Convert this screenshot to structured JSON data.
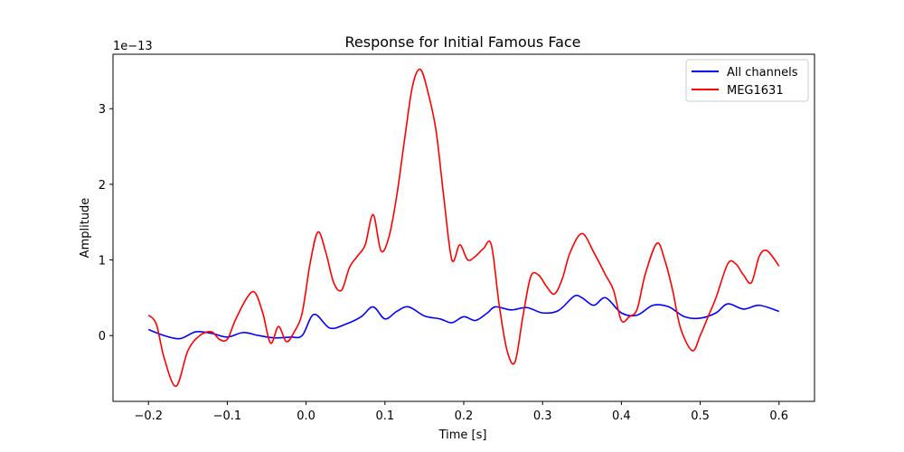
{
  "chart_data": {
    "type": "line",
    "title": "Response for Initial Famous Face",
    "xlabel": "Time [s]",
    "ylabel": "Amplitude",
    "offset_label": "1e−13",
    "xlim": [
      -0.245,
      0.645
    ],
    "ylim": [
      -0.87,
      3.72
    ],
    "x_ticks": [
      -0.2,
      -0.1,
      0.0,
      0.1,
      0.2,
      0.3,
      0.4,
      0.5,
      0.6
    ],
    "x_tick_labels": [
      "−0.2",
      "−0.1",
      "0.0",
      "0.1",
      "0.2",
      "0.3",
      "0.4",
      "0.5",
      "0.6"
    ],
    "y_ticks": [
      0,
      1,
      2,
      3
    ],
    "y_tick_labels": [
      "0",
      "1",
      "2",
      "3"
    ],
    "grid": false,
    "legend_position": "top-right",
    "series": [
      {
        "name": "All channels",
        "color": "#0000ff",
        "x": [
          -0.2,
          -0.18,
          -0.16,
          -0.14,
          -0.12,
          -0.1,
          -0.08,
          -0.06,
          -0.04,
          -0.02,
          -0.005,
          0.01,
          0.03,
          0.05,
          0.07,
          0.085,
          0.1,
          0.115,
          0.13,
          0.15,
          0.17,
          0.185,
          0.2,
          0.215,
          0.23,
          0.24,
          0.26,
          0.28,
          0.3,
          0.32,
          0.34,
          0.35,
          0.365,
          0.38,
          0.4,
          0.42,
          0.44,
          0.46,
          0.48,
          0.5,
          0.52,
          0.535,
          0.555,
          0.575,
          0.6
        ],
        "y": [
          0.08,
          0.0,
          -0.04,
          0.05,
          0.03,
          -0.02,
          0.04,
          0.0,
          -0.03,
          -0.02,
          0.0,
          0.28,
          0.1,
          0.15,
          0.25,
          0.38,
          0.22,
          0.32,
          0.38,
          0.26,
          0.22,
          0.17,
          0.25,
          0.2,
          0.3,
          0.38,
          0.34,
          0.37,
          0.3,
          0.33,
          0.52,
          0.5,
          0.4,
          0.5,
          0.3,
          0.27,
          0.4,
          0.38,
          0.25,
          0.23,
          0.3,
          0.42,
          0.35,
          0.4,
          0.32
        ]
      },
      {
        "name": "MEG1631",
        "color": "#ff0000",
        "x": [
          -0.2,
          -0.19,
          -0.18,
          -0.165,
          -0.15,
          -0.135,
          -0.12,
          -0.11,
          -0.1,
          -0.09,
          -0.075,
          -0.065,
          -0.055,
          -0.045,
          -0.035,
          -0.025,
          -0.015,
          -0.005,
          0.005,
          0.015,
          0.025,
          0.035,
          0.045,
          0.055,
          0.065,
          0.075,
          0.085,
          0.095,
          0.105,
          0.115,
          0.125,
          0.135,
          0.145,
          0.155,
          0.165,
          0.175,
          0.185,
          0.195,
          0.205,
          0.215,
          0.225,
          0.235,
          0.245,
          0.255,
          0.265,
          0.275,
          0.285,
          0.295,
          0.305,
          0.315,
          0.325,
          0.335,
          0.35,
          0.365,
          0.38,
          0.39,
          0.4,
          0.41,
          0.42,
          0.43,
          0.445,
          0.455,
          0.465,
          0.475,
          0.49,
          0.5,
          0.51,
          0.52,
          0.535,
          0.545,
          0.555,
          0.565,
          0.575,
          0.585,
          0.6
        ],
        "y": [
          0.27,
          0.15,
          -0.3,
          -0.67,
          -0.2,
          0.0,
          0.05,
          -0.05,
          -0.05,
          0.2,
          0.5,
          0.57,
          0.3,
          -0.1,
          0.12,
          -0.08,
          0.05,
          0.3,
          0.95,
          1.37,
          1.1,
          0.7,
          0.6,
          0.9,
          1.05,
          1.2,
          1.6,
          1.12,
          1.3,
          1.85,
          2.6,
          3.3,
          3.52,
          3.2,
          2.7,
          1.8,
          1.0,
          1.2,
          1.0,
          1.05,
          1.15,
          1.2,
          0.4,
          -0.2,
          -0.35,
          0.25,
          0.78,
          0.8,
          0.65,
          0.55,
          0.75,
          1.1,
          1.35,
          1.1,
          0.8,
          0.6,
          0.2,
          0.25,
          0.35,
          0.8,
          1.22,
          1.0,
          0.6,
          0.1,
          -0.2,
          0.0,
          0.25,
          0.5,
          0.95,
          0.95,
          0.8,
          0.7,
          1.05,
          1.12,
          0.92
        ]
      }
    ]
  }
}
